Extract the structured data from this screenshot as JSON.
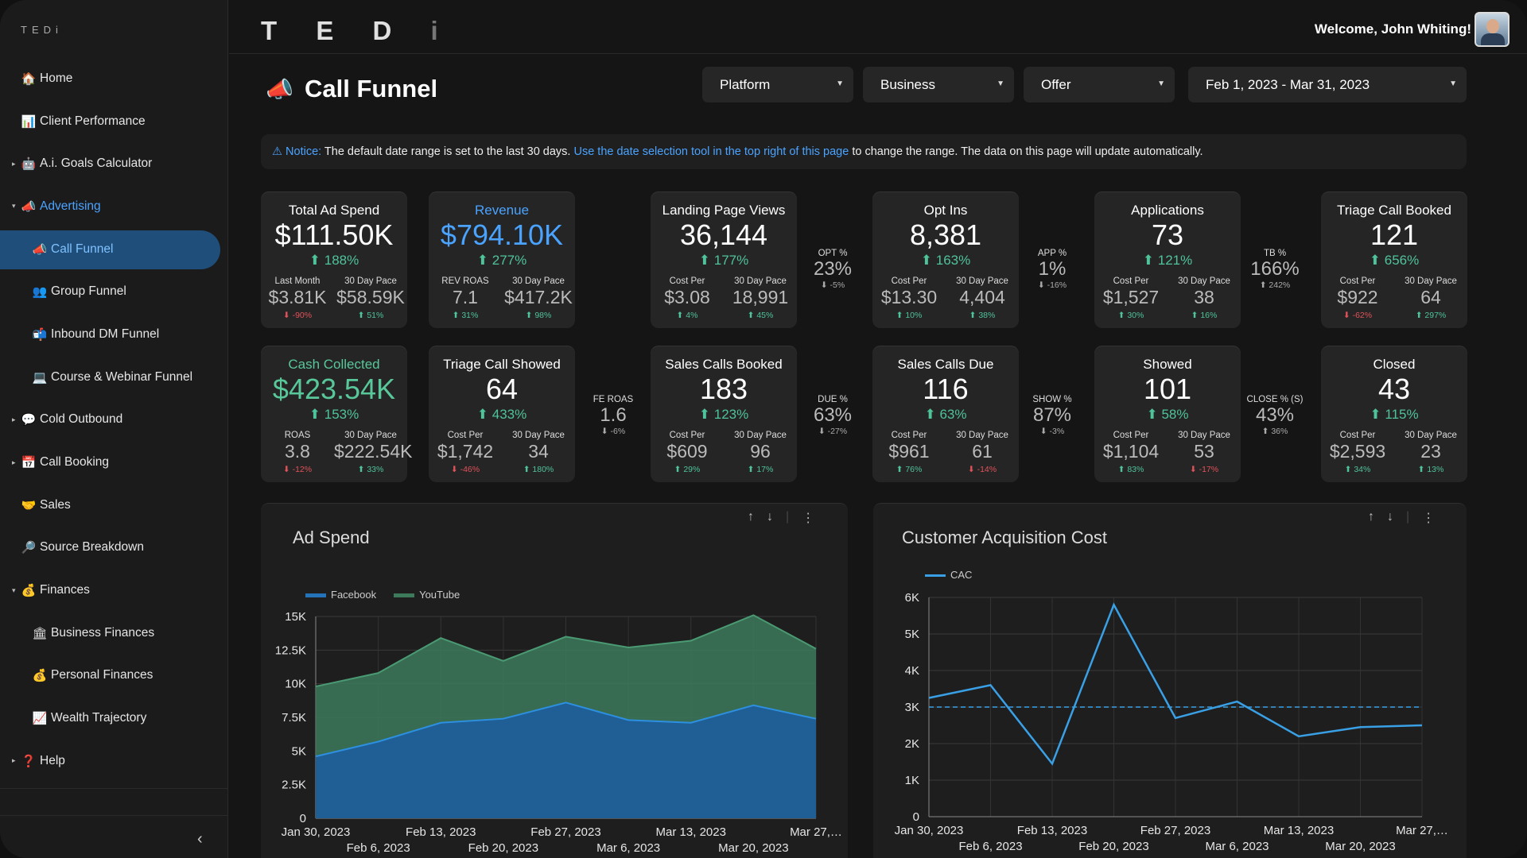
{
  "app": {
    "brand": "TEDi",
    "logo": "TEDi",
    "welcome": "Welcome, John Whiting!"
  },
  "sidebar": {
    "items": [
      {
        "label": "Home",
        "icon": "🏠",
        "level": 0,
        "caret": ""
      },
      {
        "label": "Client Performance",
        "icon": "📊",
        "level": 0,
        "caret": ""
      },
      {
        "label": "A.i. Goals Calculator",
        "icon": "🤖",
        "level": 0,
        "caret": "▸"
      },
      {
        "label": "Advertising",
        "icon": "📣",
        "level": 0,
        "caret": "▾",
        "state": "active-parent"
      },
      {
        "label": "Call Funnel",
        "icon": "📣",
        "level": 1,
        "caret": "",
        "state": "selected"
      },
      {
        "label": "Group Funnel",
        "icon": "👥",
        "level": 1,
        "caret": ""
      },
      {
        "label": "Inbound DM Funnel",
        "icon": "📬",
        "level": 1,
        "caret": ""
      },
      {
        "label": "Course & Webinar Funnel",
        "icon": "💻",
        "level": 1,
        "caret": ""
      },
      {
        "label": "Cold Outbound",
        "icon": "💬",
        "level": 0,
        "caret": "▸"
      },
      {
        "label": "Call Booking",
        "icon": "📅",
        "level": 0,
        "caret": "▸"
      },
      {
        "label": "Sales",
        "icon": "🤝",
        "level": 0,
        "caret": ""
      },
      {
        "label": "Source Breakdown",
        "icon": "🔎",
        "level": 0,
        "caret": ""
      },
      {
        "label": "Finances",
        "icon": "💰",
        "level": 0,
        "caret": "▾"
      },
      {
        "label": "Business Finances",
        "icon": "🏛",
        "level": 1,
        "caret": ""
      },
      {
        "label": "Personal Finances",
        "icon": "💰",
        "level": 1,
        "caret": ""
      },
      {
        "label": "Wealth Trajectory",
        "icon": "📈",
        "level": 1,
        "caret": ""
      },
      {
        "label": "Help",
        "icon": "❓",
        "level": 0,
        "caret": "▸"
      }
    ],
    "collapse": "‹"
  },
  "page": {
    "title": "Call Funnel",
    "icon": "📣"
  },
  "filters": {
    "platform": "Platform",
    "business": "Business",
    "offer": "Offer",
    "date_range": "Feb 1, 2023 - Mar 31, 2023"
  },
  "notice": {
    "prefix": "⚠ Notice:",
    "text1": " The default date range is set to the last 30 days. ",
    "link": "Use the date selection tool in the top right of this page",
    "text2": " to change the range. The data on this page will update automatically."
  },
  "kpis": [
    {
      "title": "Total Ad Spend",
      "value": "$111.50K",
      "change": "⬆ 188%",
      "l_label": "Last Month",
      "l_value": "$3.81K",
      "l_delta": "⬇ -90%",
      "r_label": "30 Day Pace",
      "r_value": "$58.59K",
      "r_delta": "⬆ 51%"
    },
    {
      "title": "Revenue",
      "value": "$794.10K",
      "change": "⬆ 277%",
      "l_label": "REV ROAS",
      "l_value": "7.1",
      "l_delta": "⬆ 31%",
      "r_label": "30 Day Pace",
      "r_value": "$417.2K",
      "r_delta": "⬆ 98%"
    },
    {
      "title": "Landing Page Views",
      "value": "36,144",
      "change": "⬆ 177%",
      "l_label": "Cost Per",
      "l_value": "$3.08",
      "l_delta": "⬆ 4%",
      "r_label": "30 Day Pace",
      "r_value": "18,991",
      "r_delta": "⬆ 45%"
    },
    {
      "title": "Opt Ins",
      "value": "8,381",
      "change": "⬆ 163%",
      "l_label": "Cost Per",
      "l_value": "$13.30",
      "l_delta": "⬆ 10%",
      "r_label": "30 Day Pace",
      "r_value": "4,404",
      "r_delta": "⬆ 38%"
    },
    {
      "title": "Applications",
      "value": "73",
      "change": "⬆ 121%",
      "l_label": "Cost Per",
      "l_value": "$1,527",
      "l_delta": "⬆ 30%",
      "r_label": "30 Day Pace",
      "r_value": "38",
      "r_delta": "⬆ 16%"
    },
    {
      "title": "Triage Call Booked",
      "value": "121",
      "change": "⬆ 656%",
      "l_label": "Cost Per",
      "l_value": "$922",
      "l_delta": "⬇ -62%",
      "r_label": "30 Day Pace",
      "r_value": "64",
      "r_delta": "⬆ 297%"
    },
    {
      "title": "Cash Collected",
      "value": "$423.54K",
      "change": "⬆ 153%",
      "l_label": "ROAS",
      "l_value": "3.8",
      "l_delta": "⬇ -12%",
      "r_label": "30 Day Pace",
      "r_value": "$222.54K",
      "r_delta": "⬆ 33%"
    },
    {
      "title": "Triage Call Showed",
      "value": "64",
      "change": "⬆ 433%",
      "l_label": "Cost Per",
      "l_value": "$1,742",
      "l_delta": "⬇ -46%",
      "r_label": "30 Day Pace",
      "r_value": "34",
      "r_delta": "⬆ 180%"
    },
    {
      "title": "Sales Calls Booked",
      "value": "183",
      "change": "⬆ 123%",
      "l_label": "Cost Per",
      "l_value": "$609",
      "l_delta": "⬆ 29%",
      "r_label": "30 Day Pace",
      "r_value": "96",
      "r_delta": "⬆ 17%"
    },
    {
      "title": "Sales Calls Due",
      "value": "116",
      "change": "⬆ 63%",
      "l_label": "Cost Per",
      "l_value": "$961",
      "l_delta": "⬆ 76%",
      "r_label": "30 Day Pace",
      "r_value": "61",
      "r_delta": "⬇ -14%"
    },
    {
      "title": "Showed",
      "value": "101",
      "change": "⬆ 58%",
      "l_label": "Cost Per",
      "l_value": "$1,104",
      "l_delta": "⬆ 83%",
      "r_label": "30 Day Pace",
      "r_value": "53",
      "r_delta": "⬇ -17%"
    },
    {
      "title": "Closed",
      "value": "43",
      "change": "⬆ 115%",
      "l_label": "Cost Per",
      "l_value": "$2,593",
      "l_delta": "⬆ 34%",
      "r_label": "30 Day Pace",
      "r_value": "23",
      "r_delta": "⬆ 13%"
    }
  ],
  "ratios": [
    {
      "label": "OPT %",
      "value": "23%",
      "delta": "⬇ -5%"
    },
    {
      "label": "APP %",
      "value": "1%",
      "delta": "⬇ -16%"
    },
    {
      "label": "TB %",
      "value": "166%",
      "delta": "⬆ 242%"
    },
    {
      "label": "FE ROAS",
      "value": "1.6",
      "delta": "⬇ -6%"
    },
    {
      "label": "DUE %",
      "value": "63%",
      "delta": "⬇ -27%"
    },
    {
      "label": "SHOW %",
      "value": "87%",
      "delta": "⬇ -3%"
    },
    {
      "label": "CLOSE % (S)",
      "value": "43%",
      "delta": "⬆ 36%"
    }
  ],
  "colors": {
    "accent": "#4aa3ff",
    "positive": "#4fc39a",
    "negative": "#e0525a",
    "facebook": "#2472b8",
    "youtube": "#3d7a5c",
    "cac": "#3aa0e6"
  },
  "chart_data": [
    {
      "type": "area",
      "title": "Ad Spend",
      "stacked": true,
      "x": [
        "Jan 30, 2023",
        "Feb 6, 2023",
        "Feb 13, 2023",
        "Feb 20, 2023",
        "Feb 27, 2023",
        "Mar 6, 2023",
        "Mar 13, 2023",
        "Mar 20, 2023",
        "Mar 27, 2023"
      ],
      "x_tick_labels_top": [
        "Jan 30, 2023",
        "Feb 13, 2023",
        "Feb 27, 2023",
        "Mar 13, 2023",
        "Mar 27,…"
      ],
      "x_tick_labels_bottom": [
        "Feb 6, 2023",
        "Feb 20, 2023",
        "Mar 6, 2023",
        "Mar 20, 2023"
      ],
      "series": [
        {
          "name": "Facebook",
          "values": [
            4600,
            5700,
            7100,
            7400,
            8600,
            7300,
            7100,
            8400,
            7400
          ]
        },
        {
          "name": "YouTube",
          "values": [
            5200,
            5100,
            6300,
            4300,
            4900,
            5400,
            6100,
            6700,
            5200
          ]
        }
      ],
      "ylim": [
        0,
        15000
      ],
      "yticks": [
        "0",
        "2.5K",
        "5K",
        "7.5K",
        "10K",
        "12.5K",
        "15K"
      ],
      "legend": "top-left",
      "grid": true
    },
    {
      "type": "line",
      "title": "Customer Acquisition Cost",
      "x": [
        "Jan 30, 2023",
        "Feb 6, 2023",
        "Feb 13, 2023",
        "Feb 20, 2023",
        "Feb 27, 2023",
        "Mar 6, 2023",
        "Mar 13, 2023",
        "Mar 20, 2023",
        "Mar 27, 2023"
      ],
      "x_tick_labels_top": [
        "Jan 30, 2023",
        "Feb 13, 2023",
        "Feb 27, 2023",
        "Mar 13, 2023",
        "Mar 27,…"
      ],
      "x_tick_labels_bottom": [
        "Feb 6, 2023",
        "Feb 20, 2023",
        "Mar 6, 2023",
        "Mar 20, 2023"
      ],
      "series": [
        {
          "name": "CAC",
          "values": [
            3250,
            3600,
            1450,
            5800,
            2700,
            3150,
            2200,
            2450,
            2500
          ]
        }
      ],
      "reference_line": 3000,
      "ylim": [
        0,
        6000
      ],
      "yticks": [
        "0",
        "1K",
        "2K",
        "3K",
        "4K",
        "5K",
        "6K"
      ],
      "legend": "top-left",
      "grid": true
    }
  ]
}
